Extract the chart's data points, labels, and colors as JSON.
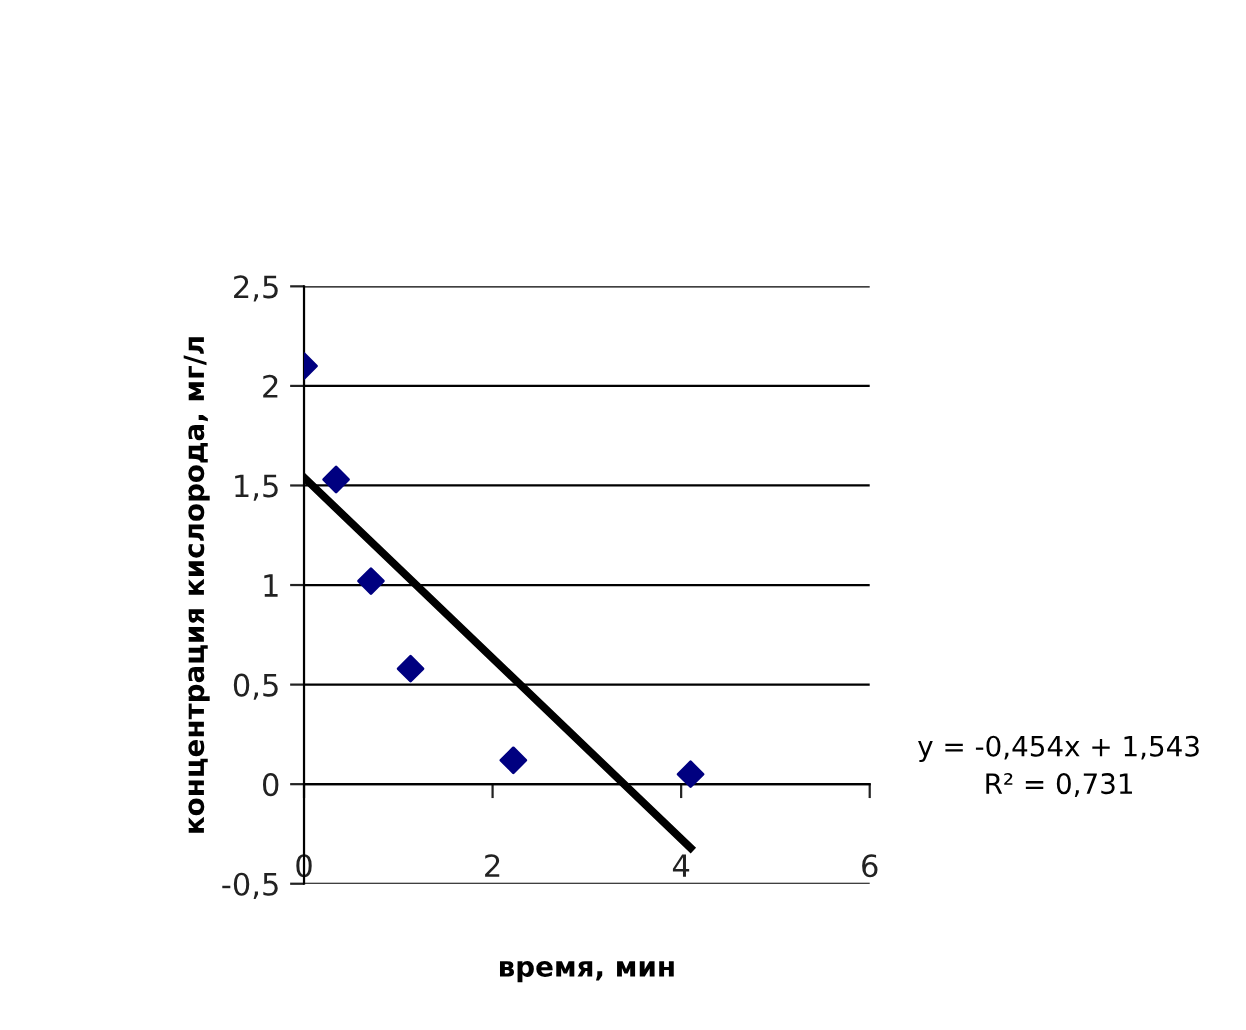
{
  "chart_data": {
    "type": "scatter",
    "xlabel": "время, мин",
    "ylabel": "концентрация кислорода, мг/л",
    "series": [
      {
        "color": "#000080",
        "marker": "diamond",
        "x": [
          0,
          0.34,
          0.71,
          1.13,
          2.22,
          4.1
        ],
        "values": [
          2.1,
          1.53,
          1.02,
          0.58,
          0.12,
          0.05
        ]
      },
      {
        "type": "line",
        "color": "#000000",
        "marker": "none",
        "line_style": "solid",
        "x": [
          0,
          4.1
        ],
        "values": [
          1.54,
          -0.32
        ]
      }
    ],
    "annotations": [
      "y = -0,454x + 1,543\nR² = 0,731"
    ],
    "xlim": [
      0,
      6
    ],
    "xticks": [
      0,
      2,
      4,
      6
    ],
    "ylim": [
      -0.5,
      2.5
    ],
    "yticks": [
      {
        "value": -0.5,
        "label": "-0,5"
      },
      0,
      {
        "value": 0.5,
        "label": "0,5"
      },
      1,
      {
        "value": 1.5,
        "label": "1,5"
      },
      2,
      {
        "value": 2.5,
        "label": "2,5"
      }
    ],
    "grid": "y",
    "legend": false
  }
}
